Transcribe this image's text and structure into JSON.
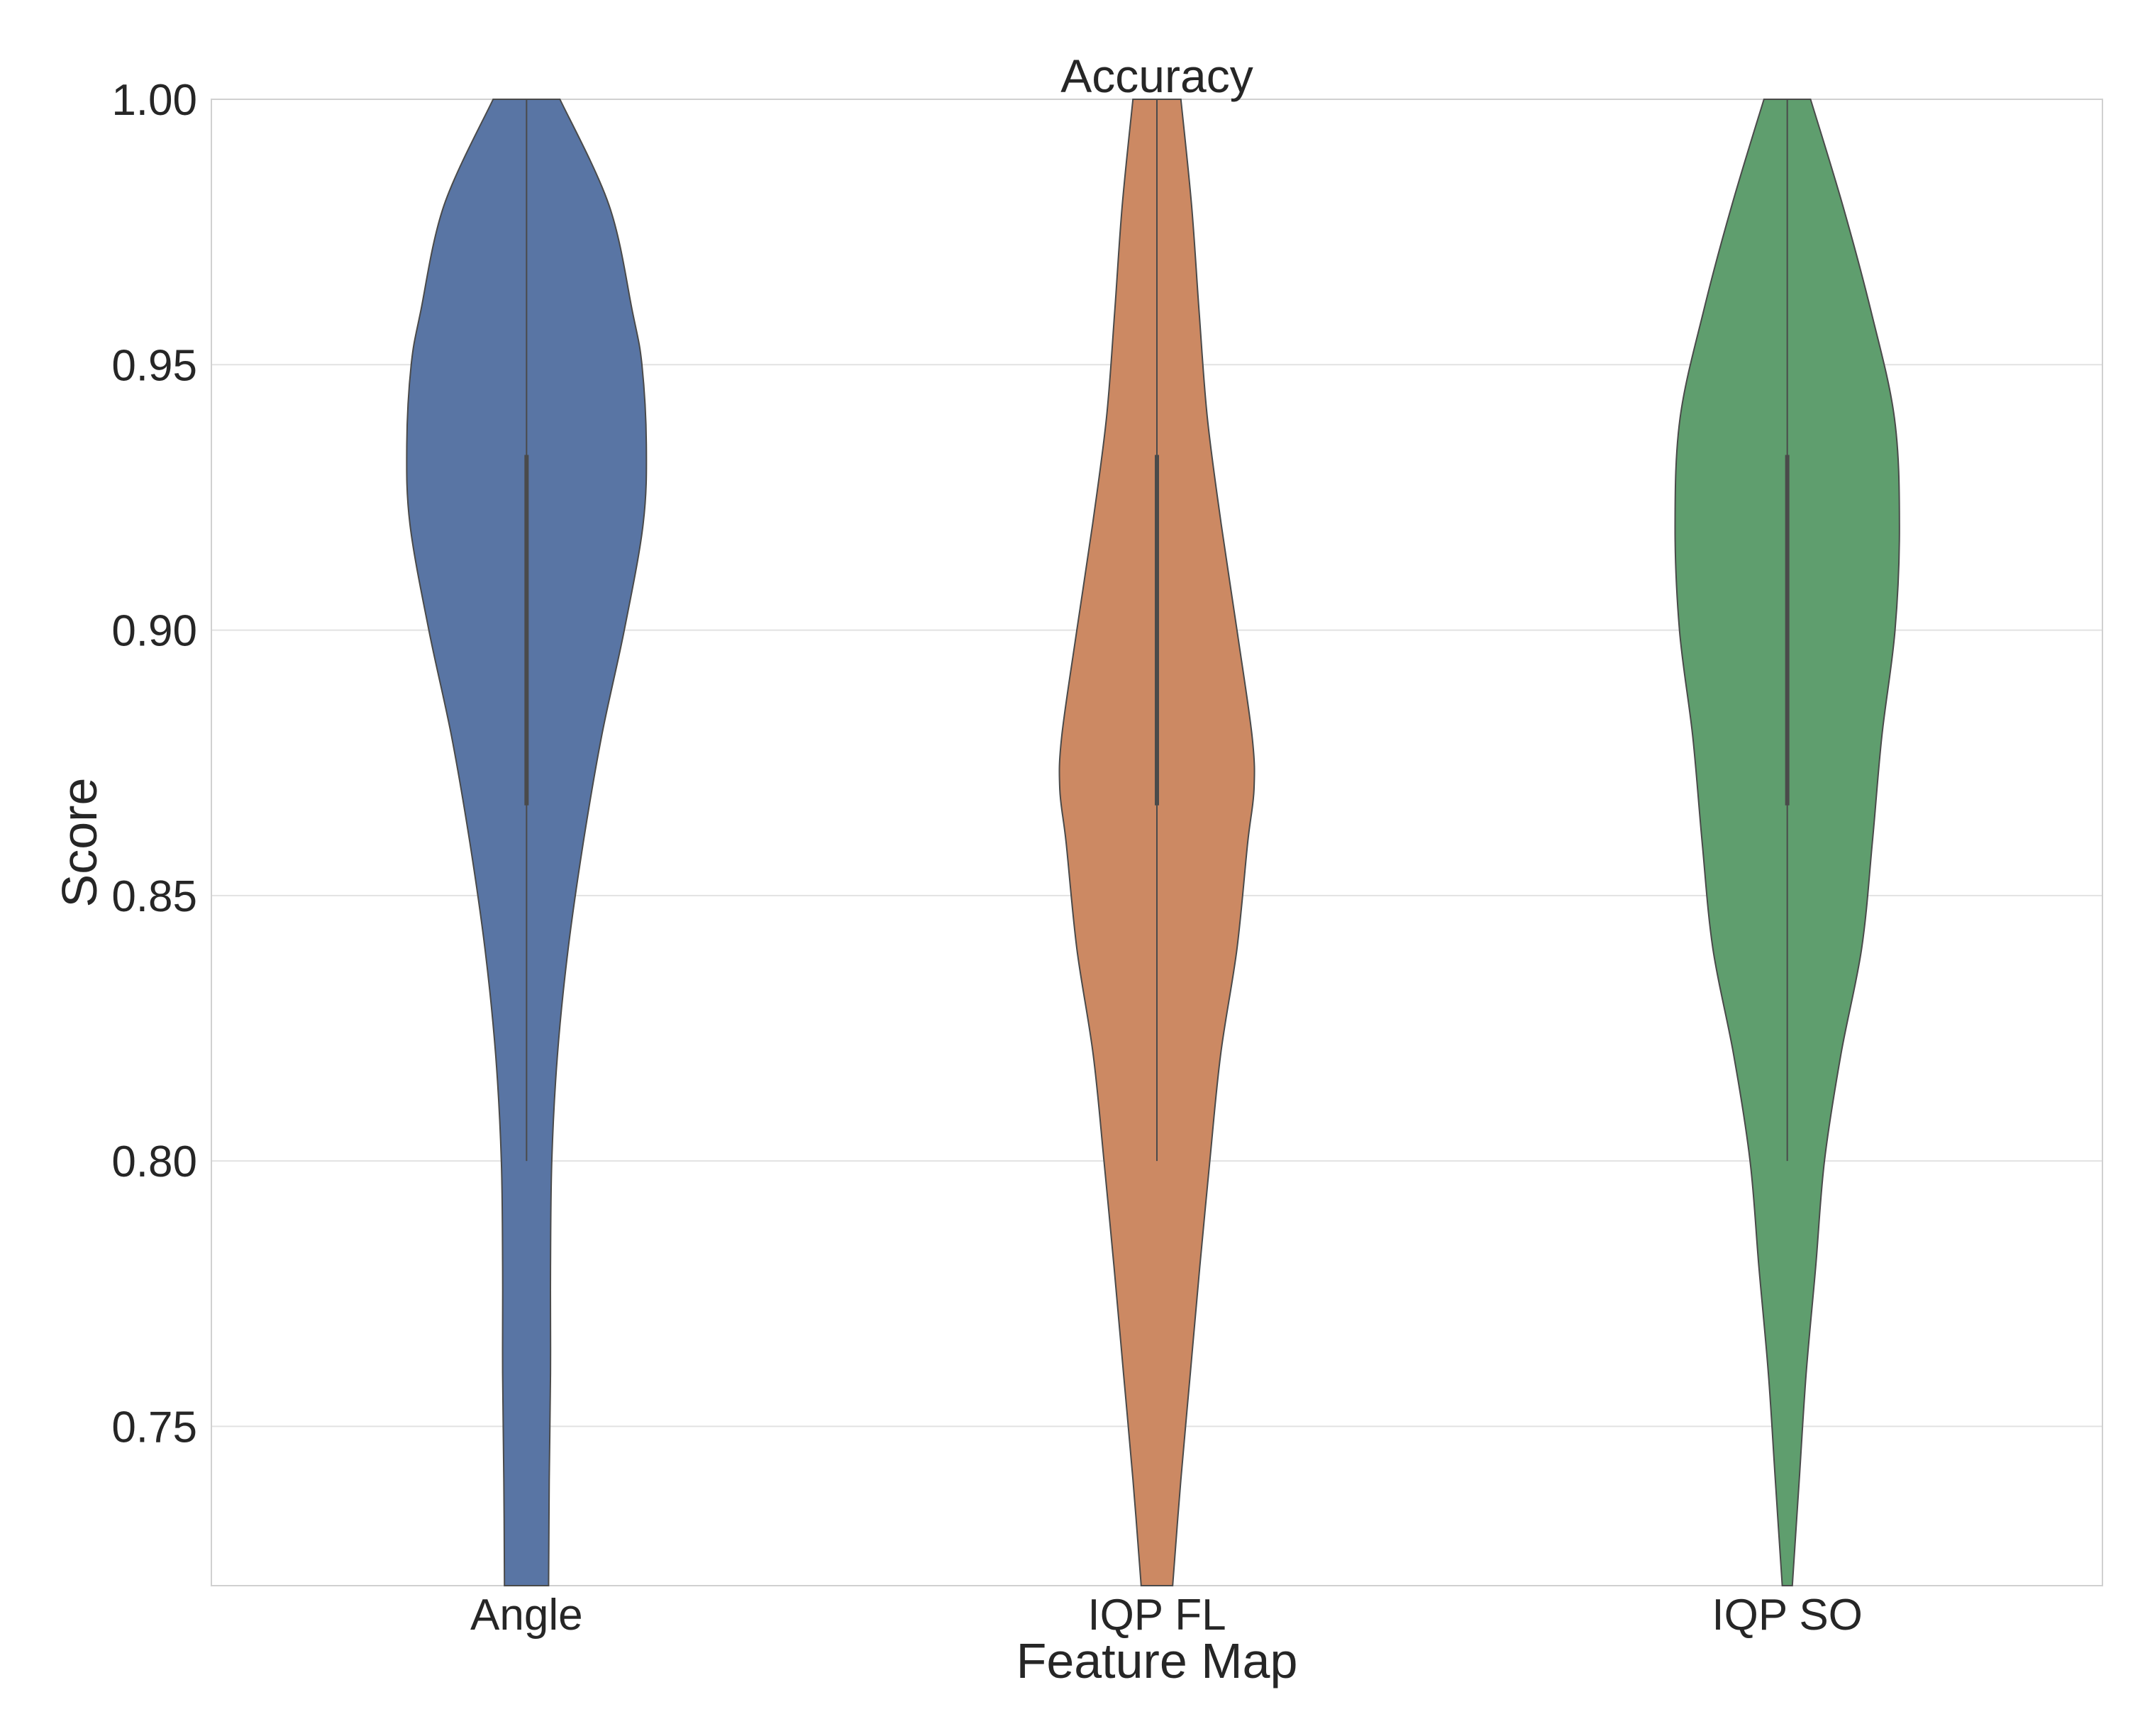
{
  "chart_data": {
    "type": "violin",
    "title": "Accuracy",
    "xlabel": "Feature Map",
    "ylabel": "Score",
    "ylim": [
      0.72,
      1.0
    ],
    "yticks": [
      0.75,
      0.8,
      0.85,
      0.9,
      0.95,
      1.0
    ],
    "ytick_labels": [
      "0.75",
      "0.80",
      "0.85",
      "0.90",
      "0.95",
      "1.00"
    ],
    "grid": "horizontal",
    "categories": [
      "Angle",
      "IQP FL",
      "IQP SO"
    ],
    "series": [
      {
        "category": "Angle",
        "color": "#5975a4",
        "whisker": [
          0.8,
          1.0
        ],
        "box": [
          0.867,
          0.933
        ],
        "density_profile": [
          [
            0.72,
            0.035
          ],
          [
            0.74,
            0.036
          ],
          [
            0.76,
            0.038
          ],
          [
            0.78,
            0.038
          ],
          [
            0.8,
            0.04
          ],
          [
            0.82,
            0.049
          ],
          [
            0.84,
            0.066
          ],
          [
            0.86,
            0.09
          ],
          [
            0.88,
            0.119
          ],
          [
            0.9,
            0.155
          ],
          [
            0.92,
            0.185
          ],
          [
            0.935,
            0.19
          ],
          [
            0.95,
            0.183
          ],
          [
            0.96,
            0.168
          ],
          [
            0.98,
            0.131
          ],
          [
            1.0,
            0.053
          ]
        ]
      },
      {
        "category": "IQP FL",
        "color": "#cc8963",
        "whisker": [
          0.8,
          1.0
        ],
        "box": [
          0.867,
          0.933
        ],
        "density_profile": [
          [
            0.72,
            0.025
          ],
          [
            0.74,
            0.038
          ],
          [
            0.76,
            0.053
          ],
          [
            0.78,
            0.068
          ],
          [
            0.8,
            0.084
          ],
          [
            0.82,
            0.101
          ],
          [
            0.84,
            0.127
          ],
          [
            0.86,
            0.144
          ],
          [
            0.87,
            0.154
          ],
          [
            0.88,
            0.151
          ],
          [
            0.9,
            0.127
          ],
          [
            0.92,
            0.102
          ],
          [
            0.94,
            0.08
          ],
          [
            0.96,
            0.067
          ],
          [
            0.98,
            0.055
          ],
          [
            1.0,
            0.038
          ]
        ]
      },
      {
        "category": "IQP SO",
        "color": "#5f9e6e",
        "whisker": [
          0.8,
          1.0
        ],
        "box": [
          0.867,
          0.933
        ],
        "density_profile": [
          [
            0.72,
            0.008
          ],
          [
            0.74,
            0.019
          ],
          [
            0.76,
            0.03
          ],
          [
            0.78,
            0.045
          ],
          [
            0.8,
            0.059
          ],
          [
            0.82,
            0.085
          ],
          [
            0.84,
            0.118
          ],
          [
            0.86,
            0.135
          ],
          [
            0.88,
            0.15
          ],
          [
            0.9,
            0.171
          ],
          [
            0.92,
            0.178
          ],
          [
            0.94,
            0.17
          ],
          [
            0.96,
            0.133
          ],
          [
            0.98,
            0.088
          ],
          [
            1.0,
            0.037
          ]
        ]
      }
    ]
  }
}
